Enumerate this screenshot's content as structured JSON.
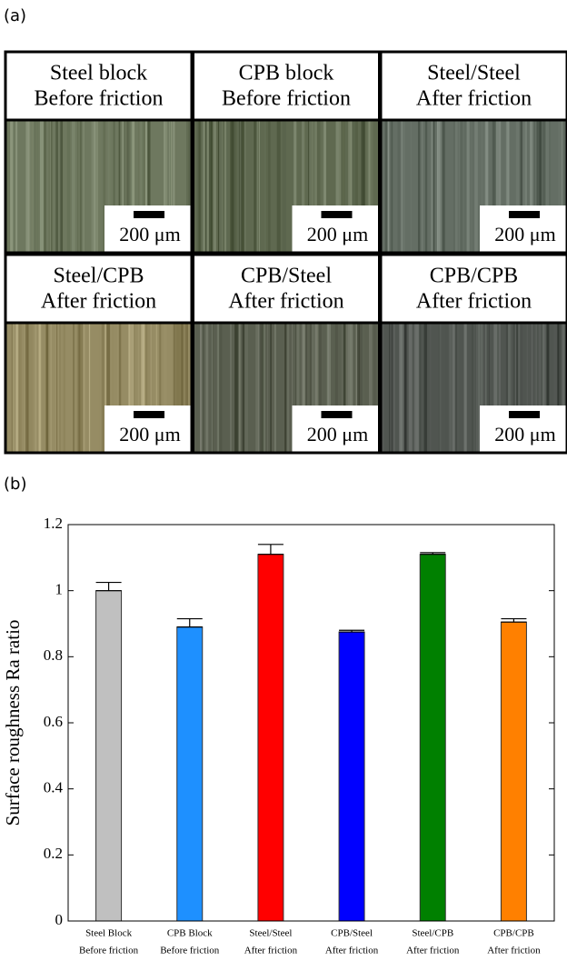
{
  "panels": {
    "a": "(a)",
    "b": "(b)"
  },
  "micrographs": [
    {
      "label": [
        "Steel block",
        "Before friction"
      ],
      "scale": "200 μm"
    },
    {
      "label": [
        "CPB block",
        "Before friction"
      ],
      "scale": "200 μm"
    },
    {
      "label": [
        "Steel/Steel",
        "After friction"
      ],
      "scale": "200 μm"
    },
    {
      "label": [
        "Steel/CPB",
        "After friction"
      ],
      "scale": "200 μm"
    },
    {
      "label": [
        "CPB/Steel",
        "After friction"
      ],
      "scale": "200 μm"
    },
    {
      "label": [
        "CPB/CPB",
        "After friction"
      ],
      "scale": "200 μm"
    }
  ],
  "chart_data": {
    "type": "bar",
    "ylabel": "Surface roughness Ra ratio",
    "categories": [
      [
        "Steel Block",
        "Before friction"
      ],
      [
        "CPB Block",
        "Before friction"
      ],
      [
        "Steel/Steel",
        "After friction"
      ],
      [
        "CPB/Steel",
        "After friction"
      ],
      [
        "Steel/CPB",
        "After friction"
      ],
      [
        "CPB/CPB",
        "After friction"
      ]
    ],
    "values": [
      1.0,
      0.89,
      1.11,
      0.875,
      1.11,
      0.905
    ],
    "errors": [
      0.025,
      0.025,
      0.03,
      0.005,
      0.005,
      0.01
    ],
    "colors": [
      "#c0c0c0",
      "#1e90ff",
      "#ff0000",
      "#0000ff",
      "#008000",
      "#ff8000"
    ],
    "ylim": [
      0,
      1.2
    ],
    "yticks": [
      0,
      0.2,
      0.4,
      0.6,
      0.8,
      1,
      1.2
    ]
  }
}
